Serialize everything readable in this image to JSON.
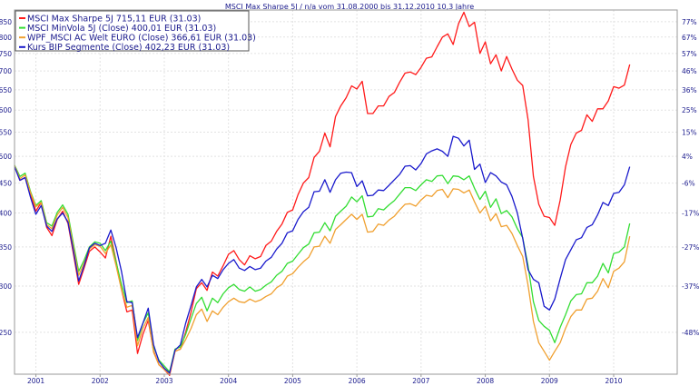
{
  "chart_data": {
    "type": "line",
    "title": "MSCI Max Sharpe 5J / n/a vom 31.08.2000 bis 31.12.2010 10,3 Jahre",
    "xlabel": "",
    "ylabel": "",
    "x_ticks": [
      "2001",
      "2002",
      "2003",
      "2004",
      "2005",
      "2006",
      "2007",
      "2008",
      "2009",
      "2010"
    ],
    "x_tick_positions": [
      2001.0,
      2002.0,
      2003.0,
      2004.0,
      2005.0,
      2006.0,
      2007.0,
      2008.0,
      2009.0,
      2010.0
    ],
    "xlim": [
      2000.667,
      2010.99
    ],
    "ylim": [
      212,
      890
    ],
    "y_scale": "log",
    "y_ticks_left": [
      250,
      300,
      350,
      400,
      450,
      500,
      550,
      600,
      650,
      700,
      750,
      800,
      850
    ],
    "y_ticks_right": [
      {
        "label": "-48%",
        "value": 250
      },
      {
        "label": "-37%",
        "value": 300
      },
      {
        "label": "-27%",
        "value": 350
      },
      {
        "label": "-17%",
        "value": 400
      },
      {
        "label": "-6%",
        "value": 450
      },
      {
        "label": "4%",
        "value": 500
      },
      {
        "label": "15%",
        "value": 550
      },
      {
        "label": "25%",
        "value": 600
      },
      {
        "label": "36%",
        "value": 650
      },
      {
        "label": "46%",
        "value": 700
      },
      {
        "label": "57%",
        "value": 750
      },
      {
        "label": "67%",
        "value": 800
      },
      {
        "label": "77%",
        "value": 850
      }
    ],
    "grid": true,
    "legend_position": "top-left",
    "series": [
      {
        "name": "MSCI Max Sharpe 5J 715,11 EUR (31.03)",
        "color": "#ff1a1a",
        "x": [
          2000.667,
          2000.75,
          2000.833,
          2000.917,
          2001.0,
          2001.083,
          2001.167,
          2001.25,
          2001.333,
          2001.417,
          2001.5,
          2001.583,
          2001.667,
          2001.75,
          2001.833,
          2001.917,
          2002.0,
          2002.083,
          2002.167,
          2002.25,
          2002.333,
          2002.417,
          2002.5,
          2002.583,
          2002.667,
          2002.75,
          2002.833,
          2002.917,
          2003.0,
          2003.083,
          2003.167,
          2003.25,
          2003.333,
          2003.417,
          2003.5,
          2003.583,
          2003.667,
          2003.75,
          2003.833,
          2003.917,
          2004.0,
          2004.083,
          2004.167,
          2004.25,
          2004.333,
          2004.417,
          2004.5,
          2004.583,
          2004.667,
          2004.75,
          2004.833,
          2004.917,
          2005.0,
          2005.083,
          2005.167,
          2005.25,
          2005.333,
          2005.417,
          2005.5,
          2005.583,
          2005.667,
          2005.75,
          2005.833,
          2005.917,
          2006.0,
          2006.083,
          2006.167,
          2006.25,
          2006.333,
          2006.417,
          2006.5,
          2006.583,
          2006.667,
          2006.75,
          2006.833,
          2006.917,
          2007.0,
          2007.083,
          2007.167,
          2007.25,
          2007.333,
          2007.417,
          2007.5,
          2007.583,
          2007.667,
          2007.75,
          2007.833,
          2007.917,
          2008.0,
          2008.083,
          2008.167,
          2008.25,
          2008.333,
          2008.417,
          2008.5,
          2008.583,
          2008.667,
          2008.75,
          2008.833,
          2008.917,
          2009.0,
          2009.083,
          2009.167,
          2009.25,
          2009.333,
          2009.417,
          2009.5,
          2009.583,
          2009.667,
          2009.75,
          2009.833,
          2009.917,
          2010.0,
          2010.083,
          2010.167,
          2010.25
        ],
        "values": [
          482,
          455,
          460,
          430,
          403,
          417,
          378,
          366,
          390,
          403,
          384,
          341,
          302,
          322,
          344,
          350,
          343,
          335,
          365,
          331,
          296,
          271,
          273,
          230,
          248,
          262,
          232,
          220,
          216,
          211,
          232,
          234,
          250,
          271,
          297,
          304,
          295,
          317,
          312,
          325,
          340,
          345,
          333,
          326,
          338,
          334,
          337,
          352,
          358,
          372,
          383,
          401,
          405,
          430,
          450,
          460,
          498,
          510,
          548,
          519,
          585,
          610,
          630,
          660,
          652,
          672,
          592,
          592,
          610,
          610,
          633,
          643,
          670,
          694,
          697,
          690,
          710,
          736,
          740,
          770,
          800,
          810,
          777,
          843,
          882,
          834,
          848,
          750,
          785,
          720,
          746,
          700,
          741,
          705,
          675,
          661,
          578,
          462,
          414,
          395,
          393,
          381,
          421,
          480,
          524,
          548,
          554,
          589,
          574,
          603,
          603,
          622,
          658,
          654,
          662,
          718
        ]
      },
      {
        "name": "MSCI MinVola 5J (Close) 400,01 EUR (31.03)",
        "color": "#33dd33",
        "x": [
          2000.667,
          2000.75,
          2000.833,
          2000.917,
          2001.0,
          2001.083,
          2001.167,
          2001.25,
          2001.333,
          2001.417,
          2001.5,
          2001.583,
          2001.667,
          2001.75,
          2001.833,
          2001.917,
          2002.0,
          2002.083,
          2002.167,
          2002.25,
          2002.333,
          2002.417,
          2002.5,
          2002.583,
          2002.667,
          2002.75,
          2002.833,
          2002.917,
          2003.0,
          2003.083,
          2003.167,
          2003.25,
          2003.333,
          2003.417,
          2003.5,
          2003.583,
          2003.667,
          2003.75,
          2003.833,
          2003.917,
          2004.0,
          2004.083,
          2004.167,
          2004.25,
          2004.333,
          2004.417,
          2004.5,
          2004.583,
          2004.667,
          2004.75,
          2004.833,
          2004.917,
          2005.0,
          2005.083,
          2005.167,
          2005.25,
          2005.333,
          2005.417,
          2005.5,
          2005.583,
          2005.667,
          2005.75,
          2005.833,
          2005.917,
          2006.0,
          2006.083,
          2006.167,
          2006.25,
          2006.333,
          2006.417,
          2006.5,
          2006.583,
          2006.667,
          2006.75,
          2006.833,
          2006.917,
          2007.0,
          2007.083,
          2007.167,
          2007.25,
          2007.333,
          2007.417,
          2007.5,
          2007.583,
          2007.667,
          2007.75,
          2007.833,
          2007.917,
          2008.0,
          2008.083,
          2008.167,
          2008.25,
          2008.333,
          2008.417,
          2008.5,
          2008.583,
          2008.667,
          2008.75,
          2008.833,
          2008.917,
          2009.0,
          2009.083,
          2009.167,
          2009.25,
          2009.333,
          2009.417,
          2009.5,
          2009.583,
          2009.667,
          2009.75,
          2009.833,
          2009.917,
          2010.0,
          2010.083,
          2010.167,
          2010.25
        ],
        "values": [
          483,
          462,
          468,
          435,
          412,
          420,
          385,
          380,
          401,
          413,
          398,
          355,
          318,
          332,
          350,
          357,
          355,
          345,
          358,
          330,
          302,
          281,
          283,
          242,
          259,
          270,
          236,
          224,
          219,
          214,
          234,
          236,
          248,
          264,
          280,
          287,
          272,
          286,
          281,
          291,
          298,
          302,
          296,
          294,
          299,
          294,
          296,
          301,
          305,
          313,
          318,
          328,
          331,
          340,
          349,
          354,
          370,
          371,
          385,
          373,
          395,
          403,
          411,
          426,
          418,
          428,
          394,
          395,
          407,
          405,
          413,
          420,
          431,
          442,
          442,
          437,
          447,
          456,
          453,
          463,
          464,
          449,
          463,
          462,
          456,
          463,
          441,
          422,
          436,
          409,
          423,
          399,
          404,
          394,
          376,
          363,
          325,
          282,
          262,
          256,
          252,
          240,
          255,
          268,
          283,
          290,
          291,
          304,
          304,
          312,
          328,
          316,
          341,
          343,
          350,
          384
        ]
      },
      {
        "name": "WPF_MSCI AC Welt EURO (Close) 366,61 EUR (31.03)",
        "color": "#f0a030",
        "x": [
          2000.667,
          2000.75,
          2000.833,
          2000.917,
          2001.0,
          2001.083,
          2001.167,
          2001.25,
          2001.333,
          2001.417,
          2001.5,
          2001.583,
          2001.667,
          2001.75,
          2001.833,
          2001.917,
          2002.0,
          2002.083,
          2002.167,
          2002.25,
          2002.333,
          2002.417,
          2002.5,
          2002.583,
          2002.667,
          2002.75,
          2002.833,
          2002.917,
          2003.0,
          2003.083,
          2003.167,
          2003.25,
          2003.333,
          2003.417,
          2003.5,
          2003.583,
          2003.667,
          2003.75,
          2003.833,
          2003.917,
          2004.0,
          2004.083,
          2004.167,
          2004.25,
          2004.333,
          2004.417,
          2004.5,
          2004.583,
          2004.667,
          2004.75,
          2004.833,
          2004.917,
          2005.0,
          2005.083,
          2005.167,
          2005.25,
          2005.333,
          2005.417,
          2005.5,
          2005.583,
          2005.667,
          2005.75,
          2005.833,
          2005.917,
          2006.0,
          2006.083,
          2006.167,
          2006.25,
          2006.333,
          2006.417,
          2006.5,
          2006.583,
          2006.667,
          2006.75,
          2006.833,
          2006.917,
          2007.0,
          2007.083,
          2007.167,
          2007.25,
          2007.333,
          2007.417,
          2007.5,
          2007.583,
          2007.667,
          2007.75,
          2007.833,
          2007.917,
          2008.0,
          2008.083,
          2008.167,
          2008.25,
          2008.333,
          2008.417,
          2008.5,
          2008.583,
          2008.667,
          2008.75,
          2008.833,
          2008.917,
          2009.0,
          2009.083,
          2009.167,
          2009.25,
          2009.333,
          2009.417,
          2009.5,
          2009.583,
          2009.667,
          2009.75,
          2009.833,
          2009.917,
          2010.0,
          2010.083,
          2010.167,
          2010.25
        ],
        "values": [
          482,
          458,
          465,
          433,
          410,
          417,
          382,
          376,
          397,
          409,
          393,
          350,
          313,
          328,
          347,
          353,
          351,
          341,
          353,
          325,
          296,
          276,
          278,
          237,
          254,
          265,
          231,
          220,
          216,
          212,
          232,
          234,
          243,
          254,
          268,
          274,
          261,
          272,
          268,
          276,
          282,
          286,
          282,
          281,
          285,
          282,
          284,
          288,
          291,
          298,
          302,
          312,
          315,
          323,
          330,
          336,
          350,
          351,
          365,
          355,
          375,
          382,
          390,
          398,
          390,
          398,
          371,
          372,
          383,
          381,
          389,
          395,
          405,
          414,
          415,
          411,
          421,
          429,
          427,
          437,
          439,
          425,
          440,
          439,
          433,
          438,
          418,
          400,
          411,
          388,
          399,
          379,
          381,
          369,
          352,
          337,
          301,
          261,
          240,
          232,
          224,
          232,
          240,
          254,
          266,
          273,
          273,
          285,
          286,
          294,
          309,
          298,
          318,
          322,
          330,
          365
        ]
      },
      {
        "name": "Kurs BIP Segmente (Close) 402,23 EUR (31.03)",
        "color": "#1a1acc",
        "x": [
          2000.667,
          2000.75,
          2000.833,
          2000.917,
          2001.0,
          2001.083,
          2001.167,
          2001.25,
          2001.333,
          2001.417,
          2001.5,
          2001.583,
          2001.667,
          2001.75,
          2001.833,
          2001.917,
          2002.0,
          2002.083,
          2002.167,
          2002.25,
          2002.333,
          2002.417,
          2002.5,
          2002.583,
          2002.667,
          2002.75,
          2002.833,
          2002.917,
          2003.0,
          2003.083,
          2003.167,
          2003.25,
          2003.333,
          2003.417,
          2003.5,
          2003.583,
          2003.667,
          2003.75,
          2003.833,
          2003.917,
          2004.0,
          2004.083,
          2004.167,
          2004.25,
          2004.333,
          2004.417,
          2004.5,
          2004.583,
          2004.667,
          2004.75,
          2004.833,
          2004.917,
          2005.0,
          2005.083,
          2005.167,
          2005.25,
          2005.333,
          2005.417,
          2005.5,
          2005.583,
          2005.667,
          2005.75,
          2005.833,
          2005.917,
          2006.0,
          2006.083,
          2006.167,
          2006.25,
          2006.333,
          2006.417,
          2006.5,
          2006.583,
          2006.667,
          2006.75,
          2006.833,
          2006.917,
          2007.0,
          2007.083,
          2007.167,
          2007.25,
          2007.333,
          2007.417,
          2007.5,
          2007.583,
          2007.667,
          2007.75,
          2007.833,
          2007.917,
          2008.0,
          2008.083,
          2008.167,
          2008.25,
          2008.333,
          2008.417,
          2008.5,
          2008.583,
          2008.667,
          2008.75,
          2008.833,
          2008.917,
          2009.0,
          2009.083,
          2009.167,
          2009.25,
          2009.333,
          2009.417,
          2009.5,
          2009.583,
          2009.667,
          2009.75,
          2009.833,
          2009.917,
          2010.0,
          2010.083,
          2010.167,
          2010.25
        ],
        "values": [
          480,
          455,
          460,
          425,
          398,
          412,
          380,
          372,
          391,
          400,
          386,
          345,
          306,
          325,
          349,
          355,
          352,
          355,
          374,
          349,
          318,
          282,
          281,
          245,
          259,
          275,
          238,
          223,
          217,
          213,
          233,
          238,
          259,
          278,
          299,
          308,
          299,
          313,
          309,
          320,
          328,
          333,
          322,
          319,
          324,
          320,
          322,
          331,
          336,
          347,
          355,
          370,
          373,
          390,
          402,
          409,
          435,
          436,
          456,
          434,
          456,
          468,
          470,
          469,
          444,
          454,
          428,
          429,
          438,
          437,
          446,
          456,
          466,
          481,
          482,
          474,
          486,
          505,
          511,
          515,
          510,
          500,
          541,
          537,
          521,
          533,
          475,
          485,
          451,
          469,
          463,
          452,
          447,
          427,
          400,
          362,
          320,
          308,
          304,
          277,
          273,
          285,
          309,
          333,
          346,
          360,
          363,
          378,
          382,
          397,
          417,
          412,
          432,
          434,
          447,
          480
        ]
      }
    ]
  }
}
